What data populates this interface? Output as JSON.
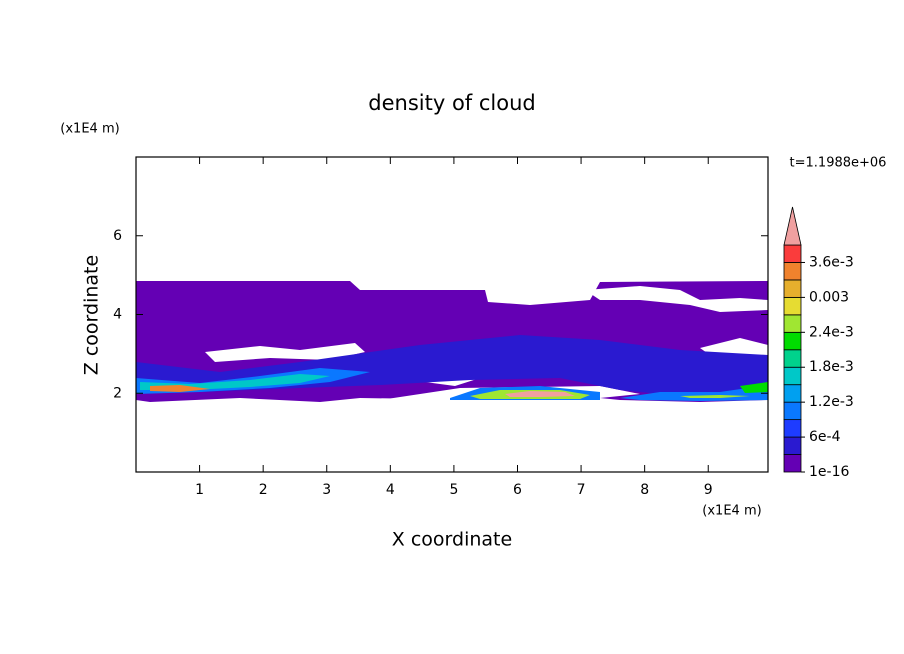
{
  "chart_data": {
    "type": "contour",
    "title": "density of cloud",
    "x_label": "X coordinate",
    "y_label": "Z coordinate",
    "x_unit": "(x1E4 m)",
    "y_unit": "(x1E4 m)",
    "time_label": "t=1.1988e+06",
    "xlim": [
      0,
      9.94
    ],
    "ylim": [
      0,
      8
    ],
    "xticks": [
      1,
      2,
      3,
      4,
      5,
      6,
      7,
      8,
      9
    ],
    "yticks": [
      2,
      4,
      6
    ],
    "levels": [
      1e-16,
      0.0003,
      0.0006,
      0.0009,
      0.0012,
      0.0015,
      0.0018,
      0.0021,
      0.0024,
      0.0027,
      0.003,
      0.0033,
      0.0036,
      0.0039
    ],
    "colors": [
      "#6400b4",
      "#2a1ad0",
      "#1e3cff",
      "#0a78ff",
      "#00a0f0",
      "#00c8c8",
      "#00d28c",
      "#00dc00",
      "#a0e632",
      "#e6dc32",
      "#e6af2d",
      "#f0822d",
      "#fa3c3c",
      "#f0a0a0"
    ],
    "colorbar_ticks": [
      {
        "value": 1e-16,
        "label": "1e-16"
      },
      {
        "value": 0.0006,
        "label": "6e-4"
      },
      {
        "value": 0.0012,
        "label": "1.2e-3"
      },
      {
        "value": 0.0018,
        "label": "1.8e-3"
      },
      {
        "value": 0.0024,
        "label": "2.4e-3"
      },
      {
        "value": 0.003,
        "label": "0.003"
      },
      {
        "value": 0.0036,
        "label": "3.6e-3"
      }
    ]
  }
}
